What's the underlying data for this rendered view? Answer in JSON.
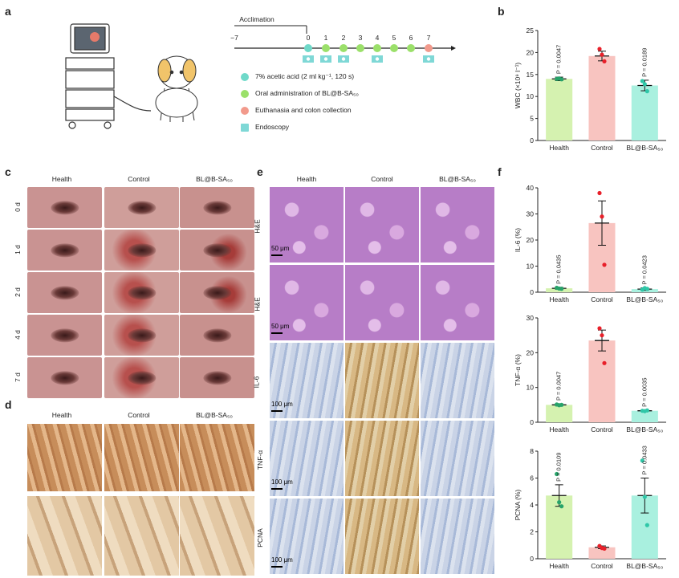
{
  "panels": {
    "a": "a",
    "b": "b",
    "c": "c",
    "d": "d",
    "e": "e",
    "f": "f"
  },
  "timeline": {
    "acclimation": "Acclimation",
    "ticks": [
      "−7",
      "0",
      "1",
      "2",
      "3",
      "4",
      "5",
      "6",
      "7"
    ],
    "legend": [
      {
        "text": "7% acetic acid (2 ml kg⁻¹, 120 s)",
        "color": "#6fd9c9",
        "shape": "circle"
      },
      {
        "text": "Oral administration of BL@B-SA₅₀",
        "color": "#9be06a",
        "shape": "circle"
      },
      {
        "text": "Euthanasia and colon collection",
        "color": "#f29a8c",
        "shape": "circle"
      },
      {
        "text": "Endoscopy",
        "color": "#7fd8d6",
        "shape": "square"
      }
    ]
  },
  "groups": [
    "Health",
    "Control",
    "BL@B-SA₅₀"
  ],
  "panel_c_rows": [
    "0 d",
    "1 d",
    "2 d",
    "4 d",
    "7 d"
  ],
  "panel_e_rows": [
    "H&E",
    "H&E",
    "IL-6",
    "TNF-α",
    "PCNA"
  ],
  "panel_e_scales": [
    "50 μm",
    "50 μm",
    "100 μm",
    "100 μm",
    "100 μm"
  ],
  "colors": {
    "health": "#d5f2b0",
    "control": "#f8c4c0",
    "treat": "#a9f0df",
    "health_dot": "#27a36a",
    "control_dot": "#e8202a",
    "treat_dot": "#2fc7a8"
  },
  "chart_data": [
    {
      "type": "bar",
      "ylabel": "WBC (×10⁹ l⁻¹)",
      "ylim": [
        0,
        25
      ],
      "yticks": [
        0,
        5,
        10,
        15,
        20,
        25
      ],
      "categories": [
        "Health",
        "Control",
        "BL@B-SA₅₀"
      ],
      "values": [
        14,
        19.2,
        12.5
      ],
      "errors": [
        0.4,
        1.1,
        1.2
      ],
      "points": [
        [
          14,
          14.1,
          13.9
        ],
        [
          20.8,
          19.5,
          18.0
        ],
        [
          13.5,
          12.8,
          11.2
        ]
      ],
      "pvalues": [
        "P = 0.0047",
        "",
        "P = 0.0189"
      ]
    },
    {
      "type": "bar",
      "ylabel": "IL-6 (%)",
      "ylim": [
        0,
        40
      ],
      "yticks": [
        0,
        10,
        20,
        30,
        40
      ],
      "categories": [
        "Health",
        "Control",
        "BL@B-SA₅₀"
      ],
      "values": [
        1.5,
        26.5,
        1.2
      ],
      "errors": [
        0.4,
        8.5,
        0.5
      ],
      "points": [
        [
          1.7,
          1.4,
          1.3
        ],
        [
          38.0,
          29.0,
          10.5
        ],
        [
          1.0,
          1.6,
          1.3
        ]
      ],
      "pvalues": [
        "P = 0.0435",
        "",
        "P = 0.0423"
      ]
    },
    {
      "type": "bar",
      "ylabel": "TNF-α (%)",
      "ylim": [
        0,
        30
      ],
      "yticks": [
        0,
        10,
        20,
        30
      ],
      "categories": [
        "Health",
        "Control",
        "BL@B-SA₅₀"
      ],
      "values": [
        5.0,
        23.5,
        3.3
      ],
      "errors": [
        0.3,
        3.0,
        0.2
      ],
      "points": [
        [
          5.1,
          4.9,
          5.0
        ],
        [
          27.0,
          25.0,
          17.0
        ],
        [
          3.3,
          3.2,
          3.4
        ]
      ],
      "pvalues": [
        "P = 0.0047",
        "",
        "P = 0.0035"
      ]
    },
    {
      "type": "bar",
      "ylabel": "PCNA (%)",
      "ylim": [
        0,
        8
      ],
      "yticks": [
        0,
        2,
        4,
        6,
        8
      ],
      "categories": [
        "Health",
        "Control",
        "BL@B-SA₅₀"
      ],
      "values": [
        4.7,
        0.85,
        4.7
      ],
      "errors": [
        0.8,
        0.1,
        1.3
      ],
      "points": [
        [
          6.3,
          4.2,
          3.9
        ],
        [
          0.95,
          0.8,
          0.75
        ],
        [
          7.3,
          4.6,
          2.5
        ]
      ],
      "pvalues": [
        "P = 0.0109",
        "",
        "P = 0.0433"
      ]
    }
  ]
}
